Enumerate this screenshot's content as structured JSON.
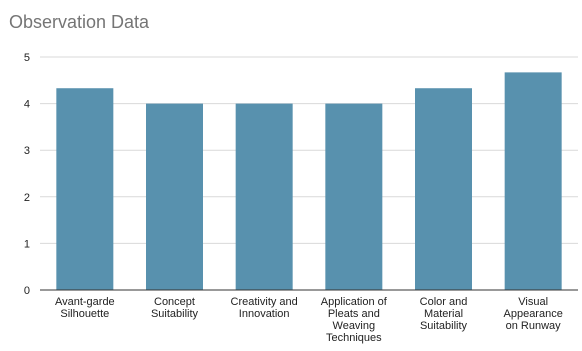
{
  "title": "Observation Data",
  "colors": {
    "bar": "#5891ae",
    "grid": "#d9d9d9",
    "axis": "#333333",
    "title": "#757575",
    "text": "#222222"
  },
  "chart_data": {
    "type": "bar",
    "title": "Observation Data",
    "xlabel": "",
    "ylabel": "",
    "ylim": [
      0,
      5
    ],
    "yticks": [
      0,
      1,
      2,
      3,
      4,
      5
    ],
    "grid": true,
    "legend": "none",
    "categories": [
      "Avant-garde Silhouette",
      "Concept Suitability",
      "Creativity and Innovation",
      "Application of Pleats and Weaving Techniques",
      "Color and Material Suitability",
      "Visual Appearance on Runway"
    ],
    "category_lines": [
      [
        "Avant-garde",
        "Silhouette"
      ],
      [
        "Concept",
        "Suitability"
      ],
      [
        "Creativity and",
        "Innovation"
      ],
      [
        "Application of",
        "Pleats and",
        "Weaving",
        "Techniques"
      ],
      [
        "Color and",
        "Material",
        "Suitability"
      ],
      [
        "Visual",
        "Appearance",
        "on Runway"
      ]
    ],
    "values": [
      4.33,
      4.0,
      4.0,
      4.0,
      4.33,
      4.67
    ]
  }
}
